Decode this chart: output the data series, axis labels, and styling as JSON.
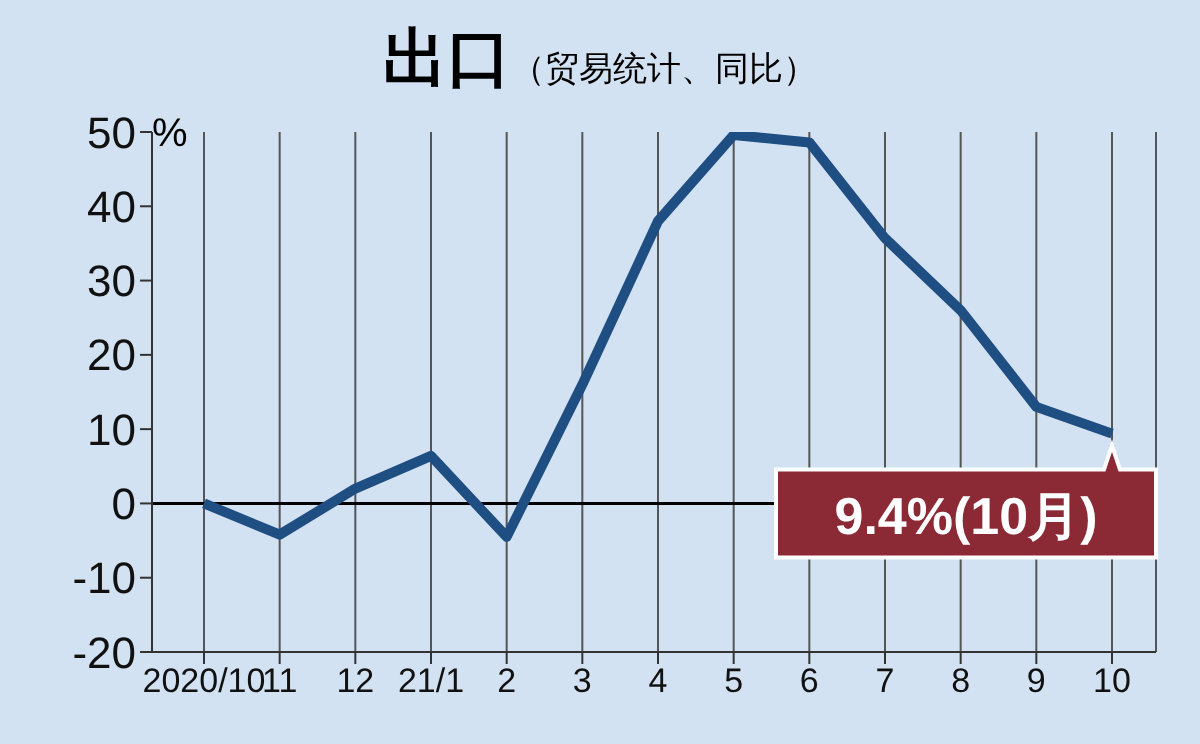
{
  "chart_data": {
    "type": "line",
    "title": "出口",
    "subtitle": "（贸易统计、同比）",
    "ylabel": "%",
    "categories": [
      "2020/10",
      "11",
      "12",
      "21/1",
      "2",
      "3",
      "4",
      "5",
      "6",
      "7",
      "8",
      "9",
      "10"
    ],
    "series": [
      {
        "color": "#1f4e82",
        "values": [
          0,
          -4.2,
          2,
          6.4,
          -4.5,
          16,
          38,
          49.6,
          48.6,
          35.7,
          26,
          13,
          9.4
        ]
      }
    ],
    "ylim": [
      -20,
      50
    ],
    "yticks": [
      -20,
      -10,
      0,
      10,
      20,
      30,
      40,
      50
    ],
    "grid": "x",
    "marker": "none",
    "line_style": "solid",
    "ref_lines": [
      {
        "axis": "y",
        "value": 0,
        "color": "#000000"
      }
    ],
    "annotations": [
      {
        "text": "9.4%(10月)",
        "x": "10",
        "y": 9.4
      }
    ]
  }
}
